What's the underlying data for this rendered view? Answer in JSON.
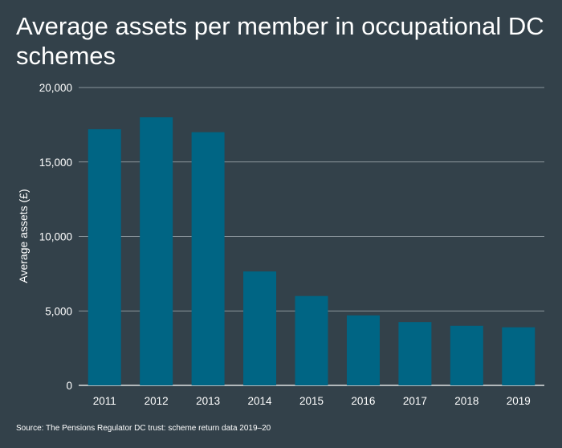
{
  "chart_data": {
    "type": "bar",
    "title": "Average assets per member in occupational DC schemes",
    "ylabel": "Average assets (£)",
    "xlabel": "",
    "categories": [
      "2011",
      "2012",
      "2013",
      "2014",
      "2015",
      "2016",
      "2017",
      "2018",
      "2019"
    ],
    "values": [
      17200,
      18000,
      17000,
      7650,
      6000,
      4700,
      4250,
      4000,
      3900
    ],
    "ylim": [
      0,
      20000
    ],
    "yticks": [
      0,
      5000,
      10000,
      15000,
      20000
    ],
    "ytick_labels": [
      "0",
      "5,000",
      "10,000",
      "15,000",
      "20,000"
    ],
    "grid": true,
    "bar_color": "#006584",
    "source": "Source: The Pensions Regulator DC trust: scheme return data 2019–20"
  }
}
